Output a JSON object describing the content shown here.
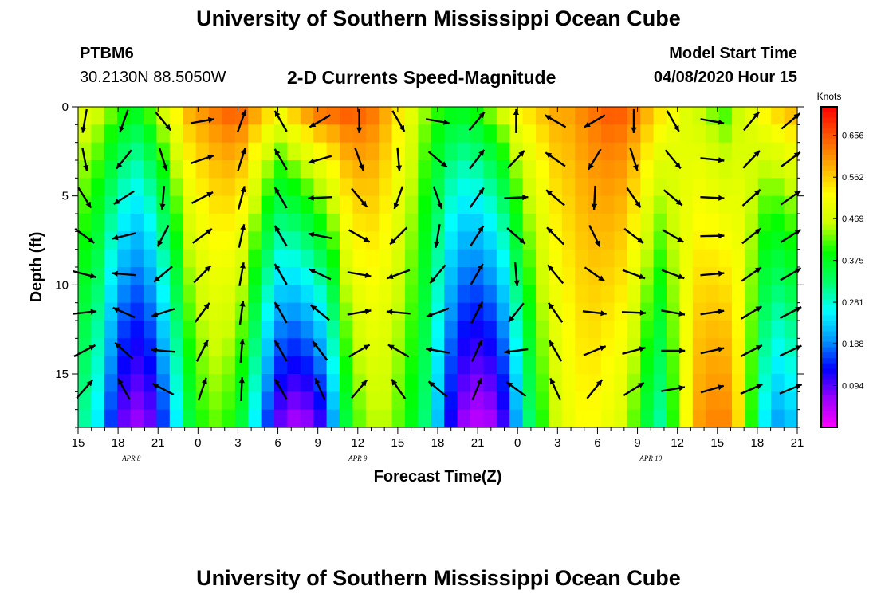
{
  "header": {
    "title": "University of Southern Mississippi Ocean Cube",
    "station": "PTBM6",
    "coords": "30.2130N 88.5050W",
    "subtitle": "2-D Currents Speed-Magnitude",
    "model_start_label": "Model Start Time",
    "model_start_value": "04/08/2020 Hour 15",
    "footer_title": "University of Southern Mississippi Ocean Cube"
  },
  "chart_data": {
    "type": "heatmap",
    "xlabel": "Forecast Time(Z)",
    "ylabel": "Depth (ft)",
    "x_ticks": [
      "15",
      "18",
      "21",
      "0",
      "3",
      "6",
      "9",
      "12",
      "15",
      "18",
      "21",
      "0",
      "3",
      "6",
      "9",
      "12",
      "15",
      "18",
      "21"
    ],
    "date_labels": [
      {
        "label": "APR 8",
        "hour_index": 4
      },
      {
        "label": "APR 9",
        "hour_index": 21
      },
      {
        "label": "APR 10",
        "hour_index": 43
      }
    ],
    "y_ticks": [
      0,
      5,
      10,
      15
    ],
    "ylim": [
      0,
      18
    ],
    "hours": [
      0,
      54
    ],
    "colorbar": {
      "unit": "Knots",
      "ticks": [
        "0.656",
        "0.562",
        "0.469",
        "0.375",
        "0.281",
        "0.188",
        "0.094"
      ],
      "tick_values": [
        0.656,
        0.562,
        0.469,
        0.375,
        0.281,
        0.188,
        0.094
      ],
      "range": [
        0.0,
        0.72
      ],
      "colors": [
        "#ff00ff",
        "#9900ff",
        "#0000ff",
        "#0099ff",
        "#00ffff",
        "#00ff66",
        "#00ff00",
        "#ccff00",
        "#ffff00",
        "#ffaa00",
        "#ff5500",
        "#ff0000"
      ]
    },
    "surface_speed": [
      0.5,
      0.48,
      0.45,
      0.42,
      0.4,
      0.44,
      0.5,
      0.55,
      0.6,
      0.62,
      0.64,
      0.66,
      0.66,
      0.62,
      0.58,
      0.55,
      0.6,
      0.64,
      0.67,
      0.67,
      0.67,
      0.66,
      0.64,
      0.6,
      0.55,
      0.5,
      0.45,
      0.42,
      0.4,
      0.4,
      0.42,
      0.46,
      0.5,
      0.55,
      0.56,
      0.58,
      0.6,
      0.6,
      0.62,
      0.64,
      0.66,
      0.66,
      0.64,
      0.6,
      0.56,
      0.52,
      0.48,
      0.45,
      0.42,
      0.4,
      0.45,
      0.5,
      0.55,
      0.58,
      0.6
    ],
    "bottom_speed": [
      0.3,
      0.25,
      0.15,
      0.08,
      0.06,
      0.08,
      0.15,
      0.25,
      0.35,
      0.4,
      0.42,
      0.4,
      0.35,
      0.25,
      0.15,
      0.08,
      0.05,
      0.06,
      0.1,
      0.2,
      0.35,
      0.42,
      0.45,
      0.45,
      0.42,
      0.38,
      0.32,
      0.22,
      0.12,
      0.06,
      0.04,
      0.05,
      0.1,
      0.2,
      0.32,
      0.4,
      0.46,
      0.5,
      0.52,
      0.52,
      0.5,
      0.48,
      0.42,
      0.35,
      0.3,
      0.4,
      0.52,
      0.6,
      0.62,
      0.62,
      0.55,
      0.4,
      0.25,
      0.2,
      0.22
    ],
    "vector_angle_surface_deg": [
      190,
      180,
      170,
      200,
      200,
      150,
      140,
      120,
      100,
      80,
      60,
      40,
      20,
      10,
      350,
      330,
      300,
      270,
      240,
      210,
      190,
      180,
      170,
      160,
      150,
      140,
      120,
      100,
      80,
      60,
      40,
      20,
      10,
      0,
      350,
      330,
      300,
      280,
      260,
      240,
      220,
      200,
      180,
      170,
      160,
      150,
      140,
      120,
      100,
      80,
      60,
      40,
      20,
      30,
      50
    ],
    "vector_angle_bottom_deg": [
      20,
      10,
      0,
      350,
      340,
      330,
      320,
      340,
      0,
      10,
      20,
      10,
      0,
      350,
      340,
      330,
      320,
      330,
      350,
      0,
      10,
      20,
      10,
      0,
      350,
      340,
      330,
      340,
      0,
      10,
      20,
      10,
      0,
      350,
      340,
      330,
      340,
      350,
      0,
      10,
      20,
      30,
      40,
      50,
      60,
      70,
      70,
      70,
      70,
      70,
      70,
      70,
      70,
      70,
      70
    ]
  }
}
